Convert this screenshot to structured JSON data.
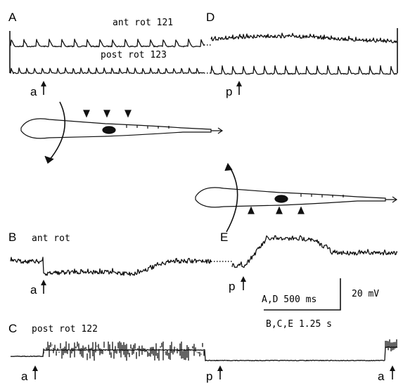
{
  "panels": [
    {
      "id": "A",
      "traces": [
        "ant rot 121",
        "post rot 123"
      ],
      "events": [
        "a"
      ]
    },
    {
      "id": "D",
      "events": [
        "p"
      ]
    },
    {
      "id": "B",
      "traces": [
        "ant rot"
      ],
      "events": [
        "a"
      ]
    },
    {
      "id": "E",
      "events": [
        "p"
      ]
    },
    {
      "id": "C",
      "traces": [
        "post rot 122"
      ],
      "events": [
        "a",
        "p",
        "a"
      ]
    }
  ],
  "scale_bar": {
    "time_AD": "A,D 500 ms",
    "time_BCE": "B,C,E 1.25 s",
    "voltage": "20 mV"
  }
}
